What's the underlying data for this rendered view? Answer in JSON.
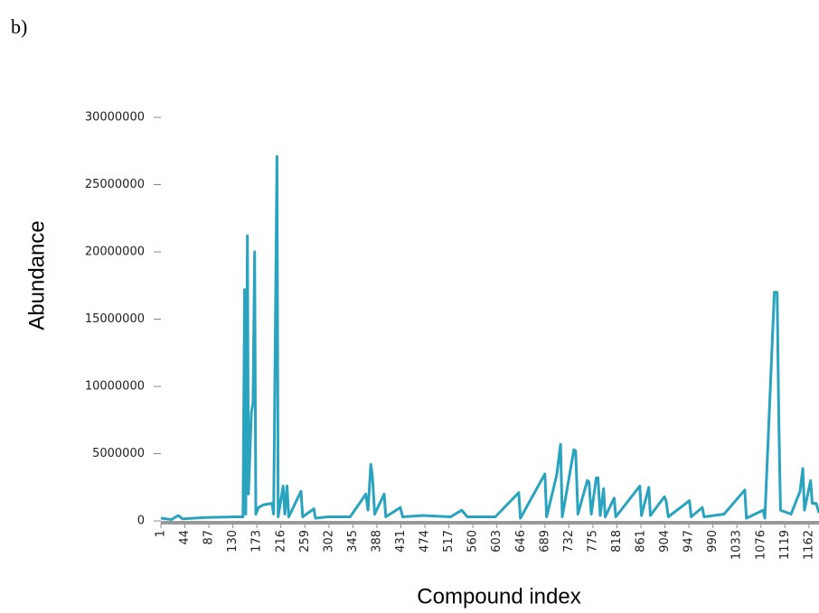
{
  "panel_label": "b)",
  "chart_data": {
    "type": "line",
    "x_label": "Compound index",
    "y_label": "Abundance",
    "xlim": [
      1,
      1180
    ],
    "ylim": [
      0,
      30000000
    ],
    "xticks": [
      1,
      44,
      87,
      130,
      173,
      216,
      259,
      302,
      345,
      388,
      431,
      474,
      517,
      560,
      603,
      646,
      689,
      732,
      775,
      818,
      861,
      904,
      947,
      990,
      1033,
      1076,
      1119,
      1162
    ],
    "yticks": [
      0,
      5000000,
      10000000,
      15000000,
      20000000,
      25000000,
      30000000
    ],
    "series": [
      {
        "color": "#2aa3bf",
        "x": [
          1,
          20,
          32,
          40,
          80,
          130,
          148,
          151,
          153,
          156,
          158,
          163,
          166,
          169,
          171,
          176,
          185,
          200,
          203,
          209,
          211,
          220,
          223,
          227,
          230,
          252,
          255,
          275,
          278,
          300,
          340,
          360,
          368,
          372,
          377,
          380,
          384,
          401,
          404,
          430,
          434,
          470,
          520,
          540,
          550,
          600,
          642,
          645,
          689,
          692,
          710,
          717,
          720,
          741,
          744,
          748,
          765,
          768,
          772,
          781,
          784,
          788,
          794,
          797,
          813,
          816,
          859,
          862,
          875,
          878,
          903,
          906,
          910,
          948,
          951,
          971,
          974,
          1010,
          1047,
          1050,
          1080,
          1083,
          1100,
          1105,
          1108,
          1111,
          1130,
          1146,
          1151,
          1154,
          1165,
          1168,
          1175,
          1180
        ],
        "values": [
          200000,
          100000,
          400000,
          150000,
          250000,
          300000,
          300000,
          17200000,
          500000,
          21200000,
          2000000,
          8000000,
          8800000,
          20000000,
          500000,
          1000000,
          1200000,
          1300000,
          500000,
          27100000,
          300000,
          2600000,
          500000,
          2600000,
          300000,
          2200000,
          300000,
          900000,
          200000,
          300000,
          300000,
          1500000,
          2000000,
          800000,
          4200000,
          3300000,
          500000,
          2000000,
          300000,
          1000000,
          300000,
          400000,
          300000,
          800000,
          300000,
          300000,
          2100000,
          200000,
          3500000,
          300000,
          3400000,
          5700000,
          300000,
          5300000,
          5200000,
          500000,
          3000000,
          2900000,
          500000,
          3200000,
          3200000,
          400000,
          2400000,
          300000,
          1700000,
          300000,
          2600000,
          400000,
          2500000,
          400000,
          1800000,
          1500000,
          300000,
          1500000,
          300000,
          1000000,
          300000,
          500000,
          2300000,
          200000,
          800000,
          200000,
          17000000,
          17000000,
          7700000,
          800000,
          500000,
          2200000,
          3900000,
          800000,
          3000000,
          1300000,
          1300000,
          600000
        ]
      }
    ]
  }
}
